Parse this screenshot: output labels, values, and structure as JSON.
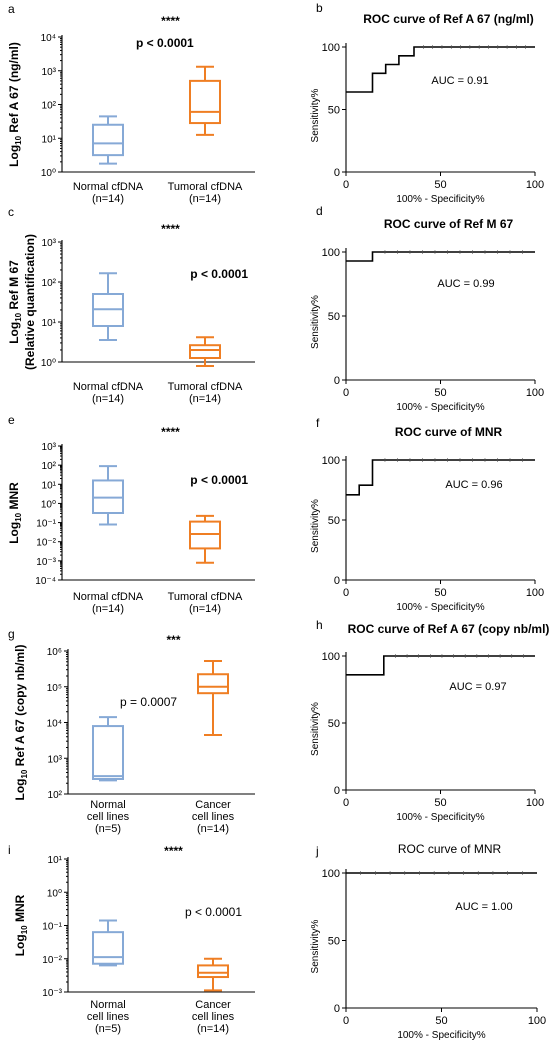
{
  "colors": {
    "normal": "#86a9d6",
    "tumoral": "#ef7e23",
    "roc": "#000000",
    "sig": "#222222"
  },
  "chart_data": [
    {
      "panel": "a",
      "type": "box",
      "log": true,
      "ylabel": "Log10 Ref A 67 (ng/ml)",
      "ylabel_main": "Log",
      "ylabel_sub": "10",
      "ylabel_rest": " Ref A 67 (ng/ml)",
      "ylim": [
        0,
        4
      ],
      "ytick_labels": [
        "10⁰",
        "10¹",
        "10²",
        "10³",
        "10⁴"
      ],
      "pvalue": "p < 0.0001",
      "pvalue_bold": true,
      "stars": "****",
      "series": [
        {
          "name": "Normal cfDNA",
          "n": "(n=14)",
          "color": "normal",
          "min": 0.25,
          "q1": 0.5,
          "median": 0.85,
          "q3": 1.4,
          "max": 1.65
        },
        {
          "name": "Tumoral cfDNA",
          "n": "(n=14)",
          "color": "tumoral",
          "min": 1.1,
          "q1": 1.45,
          "median": 1.78,
          "q3": 2.7,
          "max": 3.12
        }
      ]
    },
    {
      "panel": "b",
      "type": "line",
      "title": "ROC curve of Ref A 67 (ng/ml)",
      "title_bold": true,
      "xlabel": "100% - Specificity%",
      "ylabel": "Sensitivity%",
      "xlim": [
        0,
        100
      ],
      "ylim": [
        0,
        100
      ],
      "xticks": [
        0,
        50,
        100
      ],
      "yticks": [
        0,
        50,
        100
      ],
      "auc": "AUC = 0.91",
      "x": [
        0,
        14,
        14,
        21,
        21,
        28,
        28,
        36,
        36,
        100
      ],
      "y": [
        64,
        64,
        79,
        79,
        86,
        86,
        93,
        93,
        100,
        100
      ]
    },
    {
      "panel": "c",
      "type": "box",
      "log": true,
      "ylabel": "Log10 Ref M 67 (Relative quantification)",
      "ylabel_main": "Log",
      "ylabel_sub": "10",
      "ylabel_rest": " Ref M 67",
      "ylabel_line2": "(Relative quantification)",
      "ylim": [
        0,
        3
      ],
      "ytick_labels": [
        "10⁰",
        "10¹",
        "10²",
        "10³"
      ],
      "pvalue": "p < 0.0001",
      "pvalue_bold": true,
      "stars": "****",
      "series": [
        {
          "name": "Normal cfDNA",
          "n": "(n=14)",
          "color": "normal",
          "min": 0.55,
          "q1": 0.9,
          "median": 1.32,
          "q3": 1.7,
          "max": 2.22
        },
        {
          "name": "Tumoral cfDNA",
          "n": "(n=14)",
          "color": "tumoral",
          "min": -0.1,
          "q1": 0.1,
          "median": 0.3,
          "q3": 0.42,
          "max": 0.62
        }
      ]
    },
    {
      "panel": "d",
      "type": "line",
      "title": "ROC curve of Ref M 67",
      "title_bold": true,
      "xlabel": "100% - Specificity%",
      "ylabel": "Sensitivity%",
      "xlim": [
        0,
        100
      ],
      "ylim": [
        0,
        100
      ],
      "xticks": [
        0,
        50,
        100
      ],
      "yticks": [
        0,
        50,
        100
      ],
      "auc": "AUC = 0.99",
      "x": [
        0,
        14,
        14,
        100
      ],
      "y": [
        93,
        93,
        100,
        100
      ]
    },
    {
      "panel": "e",
      "type": "box",
      "log": true,
      "ylabel": "Log10 MNR",
      "ylabel_main": "Log",
      "ylabel_sub": "10",
      "ylabel_rest": " MNR",
      "ylim": [
        -4,
        3
      ],
      "ytick_labels": [
        "10⁻⁴",
        "10⁻³",
        "10⁻²",
        "10⁻¹",
        "10⁰",
        "10¹",
        "10²",
        "10³"
      ],
      "pvalue": "p < 0.0001",
      "pvalue_bold": true,
      "stars": "****",
      "series": [
        {
          "name": "Normal cfDNA",
          "n": "(n=14)",
          "color": "normal",
          "min": -1.1,
          "q1": -0.5,
          "median": 0.3,
          "q3": 1.2,
          "max": 1.95
        },
        {
          "name": "Tumoral cfDNA",
          "n": "(n=14)",
          "color": "tumoral",
          "min": -3.1,
          "q1": -2.35,
          "median": -1.6,
          "q3": -0.95,
          "max": -0.65
        }
      ]
    },
    {
      "panel": "f",
      "type": "line",
      "title": "ROC curve of MNR",
      "title_bold": true,
      "xlabel": "100% - Specificity%",
      "ylabel": "Sensitivity%",
      "xlim": [
        0,
        100
      ],
      "ylim": [
        0,
        100
      ],
      "xticks": [
        0,
        50,
        100
      ],
      "yticks": [
        0,
        50,
        100
      ],
      "auc": "AUC = 0.96",
      "x": [
        0,
        7,
        7,
        14,
        14,
        100
      ],
      "y": [
        71,
        71,
        79,
        79,
        100,
        100
      ]
    },
    {
      "panel": "g",
      "type": "box",
      "log": true,
      "ylabel": "Log10 Ref A 67 (copy nb/ml)",
      "ylabel_main": "Log",
      "ylabel_sub": "10",
      "ylabel_rest": " Ref A 67 (copy nb/ml)",
      "ylim": [
        2,
        6
      ],
      "ytick_labels": [
        "10²",
        "10³",
        "10⁴",
        "10⁵",
        "10⁶"
      ],
      "pvalue": "p = 0.0007",
      "pvalue_bold": false,
      "stars": "***",
      "series": [
        {
          "name": "Normal\ncell lines",
          "n": "(n=5)",
          "color": "normal",
          "min": 2.38,
          "q1": 2.42,
          "median": 2.5,
          "q3": 3.9,
          "max": 4.15
        },
        {
          "name": "Cancer\ncell lines",
          "n": "(n=14)",
          "color": "tumoral",
          "min": 3.65,
          "q1": 4.82,
          "median": 5.0,
          "q3": 5.35,
          "max": 5.72
        }
      ]
    },
    {
      "panel": "h",
      "type": "line",
      "title": "ROC curve of Ref A 67 (copy nb/ml)",
      "title_bold": true,
      "xlabel": "100% - Specificity%",
      "ylabel": "Sensitivity%",
      "xlim": [
        0,
        100
      ],
      "ylim": [
        0,
        100
      ],
      "xticks": [
        0,
        50,
        100
      ],
      "yticks": [
        0,
        50,
        100
      ],
      "auc": "AUC = 0.97",
      "x": [
        0,
        20,
        20,
        100
      ],
      "y": [
        86,
        86,
        100,
        100
      ]
    },
    {
      "panel": "i",
      "type": "box",
      "log": true,
      "ylabel": "Log10 MNR",
      "ylabel_main": "Log",
      "ylabel_sub": "10",
      "ylabel_rest": " MNR",
      "ylim": [
        -3,
        1
      ],
      "ytick_labels": [
        "10⁻³",
        "10⁻²",
        "10⁻¹",
        "10⁰",
        "10¹"
      ],
      "pvalue": "p < 0.0001",
      "pvalue_bold": false,
      "stars": "****",
      "series": [
        {
          "name": "Normal\ncell lines",
          "n": "(n=5)",
          "color": "normal",
          "min": -2.2,
          "q1": -2.15,
          "median": -1.95,
          "q3": -1.2,
          "max": -0.85
        },
        {
          "name": "Cancer\ncell lines",
          "n": "(n=14)",
          "color": "tumoral",
          "min": -2.95,
          "q1": -2.55,
          "median": -2.42,
          "q3": -2.2,
          "max": -2.0
        }
      ]
    },
    {
      "panel": "j",
      "type": "line",
      "title": "ROC curve of MNR",
      "title_bold": false,
      "xlabel": "100% - Specificity%",
      "ylabel": "Sensitivity%",
      "xlim": [
        0,
        100
      ],
      "ylim": [
        0,
        100
      ],
      "xticks": [
        0,
        50,
        100
      ],
      "yticks": [
        0,
        50,
        100
      ],
      "auc": "AUC = 1.00",
      "x": [
        0,
        100
      ],
      "y": [
        100,
        100
      ]
    }
  ]
}
